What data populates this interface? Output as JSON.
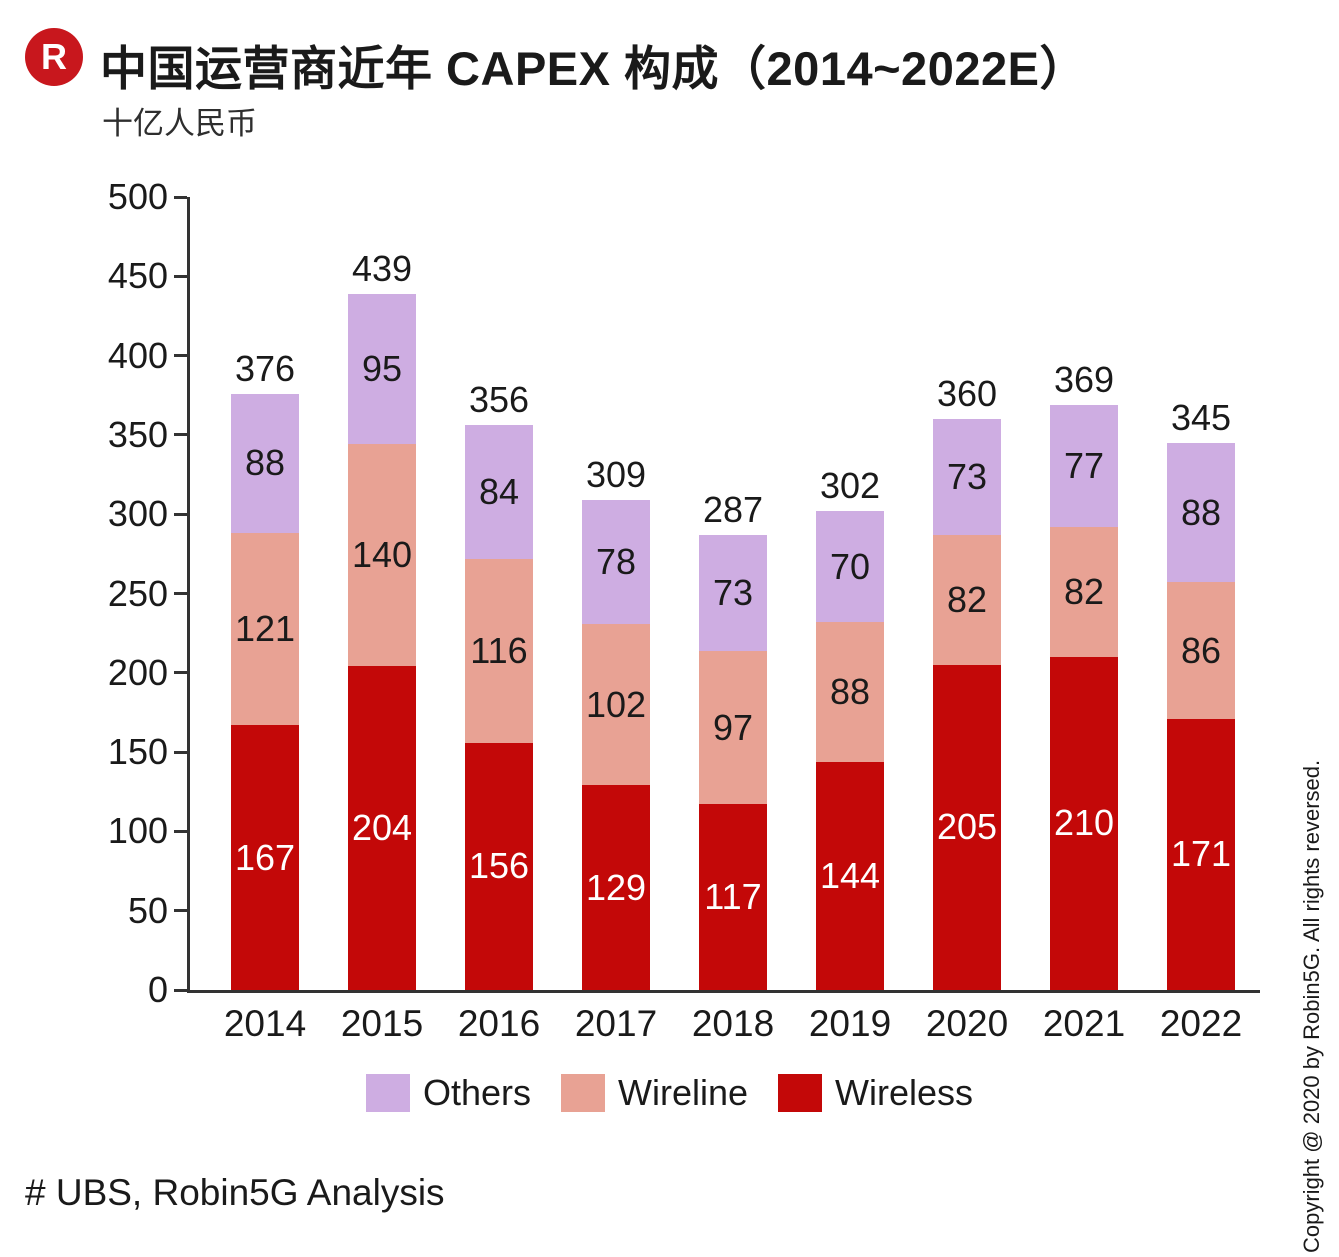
{
  "header": {
    "logo_letter": "R",
    "title": "中国运营商近年 CAPEX 构成（2014~2022E）",
    "subtitle": "十亿人民币"
  },
  "chart_data": {
    "type": "bar",
    "stacked": true,
    "title": "中国运营商近年 CAPEX 构成（2014~2022E）",
    "unit_label": "十亿人民币",
    "categories": [
      "2014",
      "2015",
      "2016",
      "2017",
      "2018",
      "2019",
      "2020",
      "2021",
      "2022"
    ],
    "series": [
      {
        "name": "Wireless",
        "color": "#c30808",
        "label_color": "#ffffff",
        "values": [
          167,
          204,
          156,
          129,
          117,
          144,
          205,
          210,
          171
        ]
      },
      {
        "name": "Wireline",
        "color": "#e8a294",
        "label_color": "#1a1a1a",
        "values": [
          121,
          140,
          116,
          102,
          97,
          88,
          82,
          82,
          86
        ]
      },
      {
        "name": "Others",
        "color": "#ceade2",
        "label_color": "#1a1a1a",
        "values": [
          88,
          95,
          84,
          78,
          73,
          70,
          73,
          77,
          88
        ]
      }
    ],
    "totals": [
      376,
      439,
      356,
      309,
      287,
      302,
      360,
      369,
      345
    ],
    "ylim": [
      0,
      500
    ],
    "ytick_step": 50,
    "yticks": [
      0,
      50,
      100,
      150,
      200,
      250,
      300,
      350,
      400,
      450,
      500
    ],
    "grid": false,
    "legend_position": "bottom",
    "legend_order": [
      "Others",
      "Wireline",
      "Wireless"
    ]
  },
  "footer": {
    "source": "# UBS, Robin5G Analysis"
  },
  "copyright": "Copyright @ 2020 by Robin5G. All rights reversed."
}
